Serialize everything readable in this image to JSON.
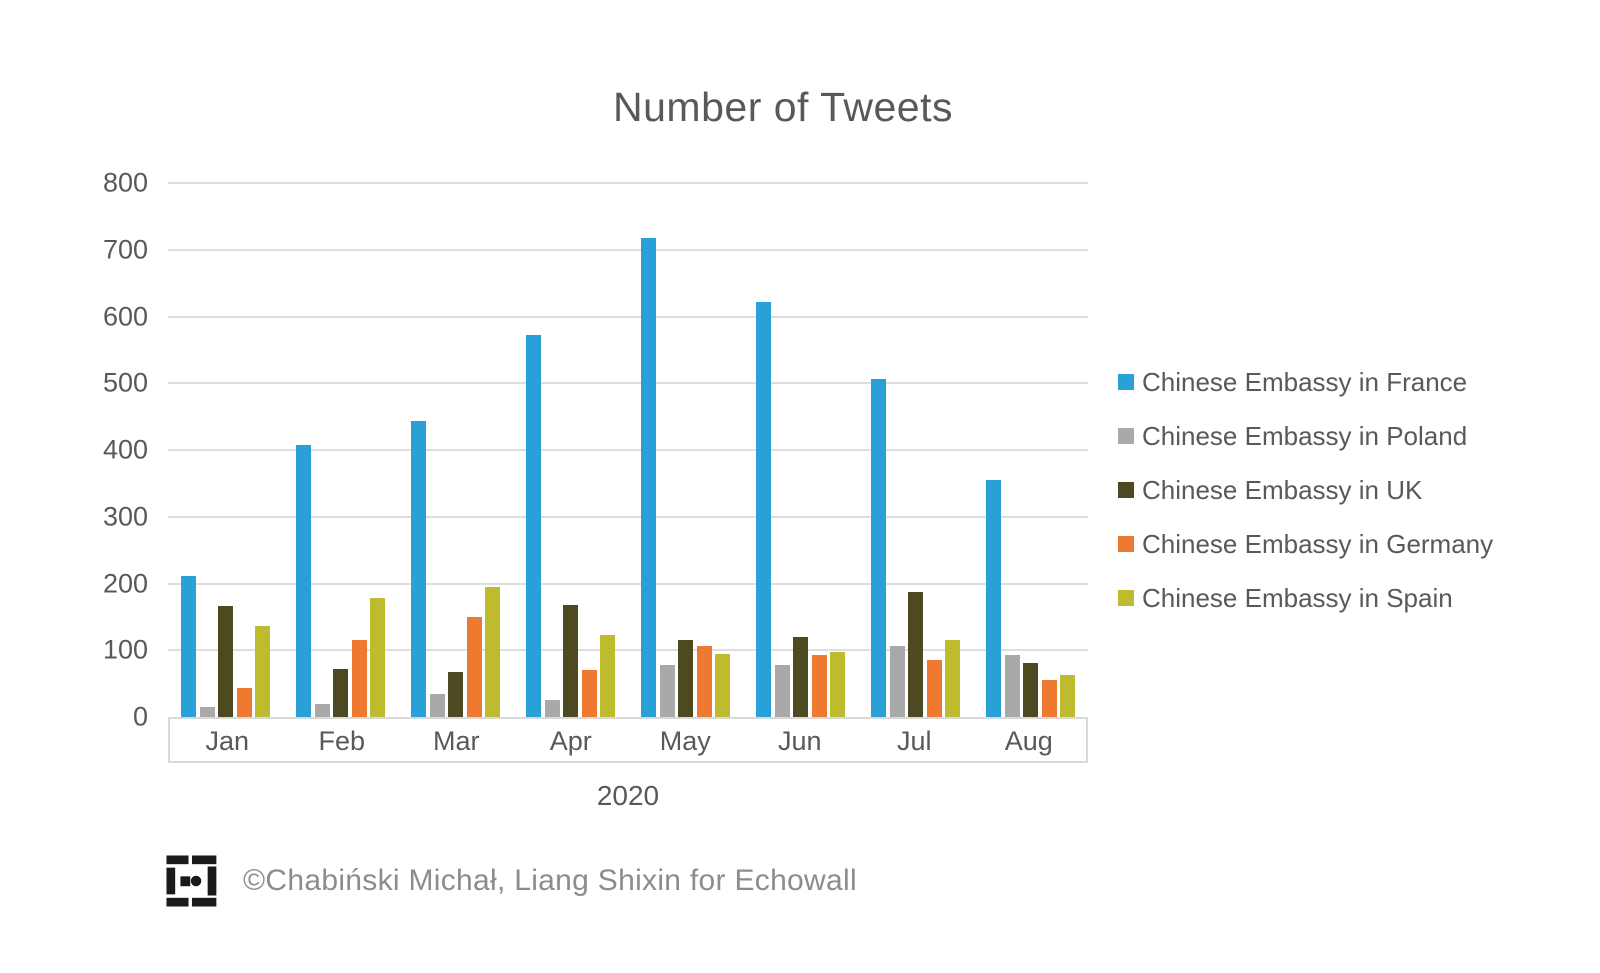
{
  "chart_data": {
    "type": "bar",
    "title": "Number of Tweets",
    "categories": [
      "Jan",
      "Feb",
      "Mar",
      "Apr",
      "May",
      "Jun",
      "Jul",
      "Aug"
    ],
    "series": [
      {
        "name": "Chinese Embassy in France",
        "color": "#29A0D8",
        "values": [
          211,
          407,
          443,
          572,
          718,
          621,
          506,
          355
        ]
      },
      {
        "name": "Chinese Embassy in Poland",
        "color": "#A9A9A9",
        "values": [
          15,
          20,
          35,
          25,
          78,
          78,
          107,
          93
        ]
      },
      {
        "name": "Chinese Embassy in UK",
        "color": "#4D4A22",
        "values": [
          166,
          72,
          67,
          168,
          115,
          120,
          188,
          81
        ]
      },
      {
        "name": "Chinese Embassy in Germany",
        "color": "#ED7A30",
        "values": [
          43,
          115,
          150,
          70,
          107,
          93,
          86,
          55
        ]
      },
      {
        "name": "Chinese Embassy in Spain",
        "color": "#BFBB2F",
        "values": [
          136,
          178,
          195,
          123,
          95,
          97,
          115,
          63
        ]
      }
    ],
    "xlabel": "2020",
    "ylabel": "",
    "ylim": [
      0,
      800
    ],
    "ytick_step": 100,
    "grid": true,
    "legend_position": "right"
  },
  "footer": {
    "attribution": "©Chabiński Michał, Liang Shixin for Echowall",
    "logo": "echowall-logo"
  },
  "style": {
    "title_color": "#595959",
    "axis_text_color": "#595959",
    "gridline_color": "#dedede",
    "attribution_color": "#8c8c8c"
  }
}
